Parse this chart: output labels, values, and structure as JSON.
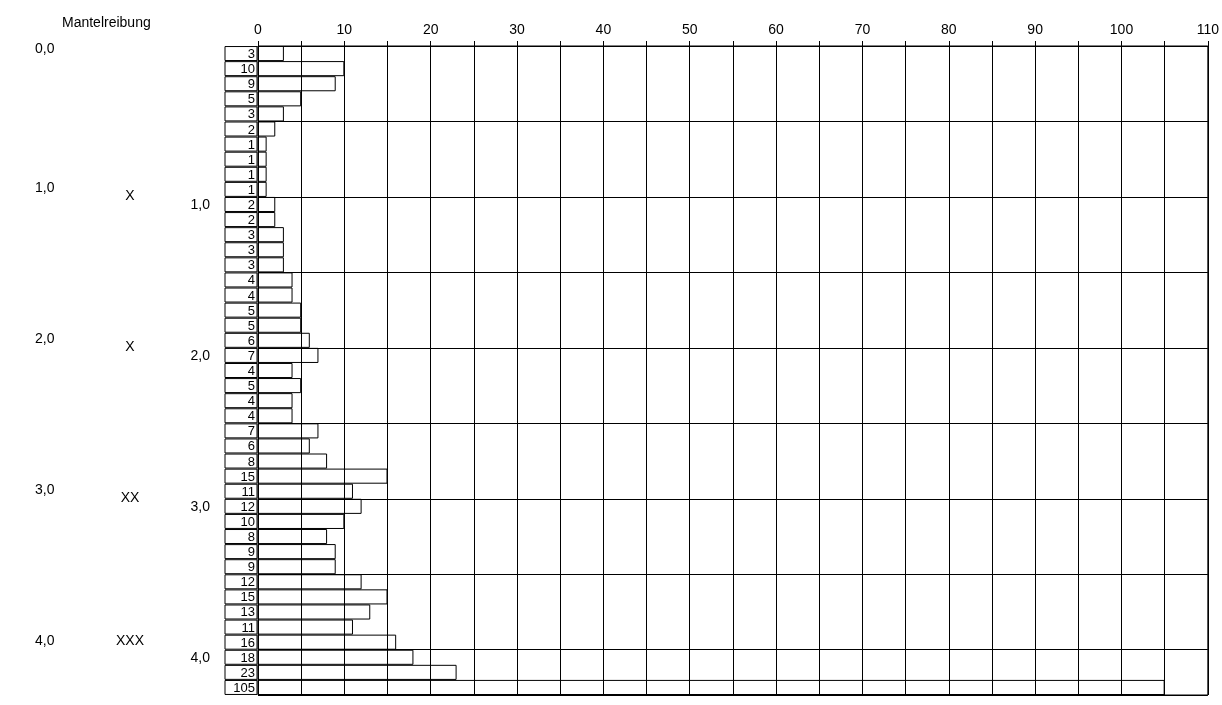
{
  "chart_data": {
    "type": "bar",
    "orientation": "horizontal",
    "categories": [
      null,
      null,
      null,
      null,
      null,
      null,
      null,
      null,
      null,
      null,
      "1,0",
      null,
      null,
      null,
      null,
      null,
      null,
      null,
      null,
      null,
      "2,0",
      null,
      null,
      null,
      null,
      null,
      null,
      null,
      null,
      null,
      "3,0",
      null,
      null,
      null,
      null,
      null,
      null,
      null,
      null,
      null,
      "4,0",
      null,
      null
    ],
    "series": [
      {
        "color": "#000000",
        "values": [
          3,
          10,
          9,
          5,
          3,
          2,
          1,
          1,
          1,
          1,
          2,
          2,
          3,
          3,
          3,
          4,
          4,
          5,
          5,
          6,
          7,
          4,
          5,
          4,
          4,
          7,
          6,
          8,
          15,
          11,
          12,
          10,
          8,
          9,
          9,
          12,
          15,
          13,
          11,
          16,
          18,
          23,
          105
        ]
      }
    ],
    "xlim": [
      0,
      110
    ],
    "xticks": [
      0,
      {
        "value": 5,
        "label": null
      },
      10,
      {
        "value": 15,
        "label": null
      },
      20,
      {
        "value": 25,
        "label": null
      },
      30,
      {
        "value": 35,
        "label": null
      },
      40,
      {
        "value": 45,
        "label": null
      },
      50,
      {
        "value": 55,
        "label": null
      },
      60,
      {
        "value": 65,
        "label": null
      },
      70,
      {
        "value": 75,
        "label": null
      },
      80,
      {
        "value": 85,
        "label": null
      },
      90,
      {
        "value": 95,
        "label": null
      },
      100,
      {
        "value": 105,
        "label": null
      },
      110
    ],
    "grid": true,
    "data_labels": true,
    "annotations": [
      "Mantelreibung",
      "0,0",
      "1,0",
      "2,0",
      "3,0",
      "4,0",
      "X",
      "X",
      "XX",
      "XXX"
    ]
  }
}
